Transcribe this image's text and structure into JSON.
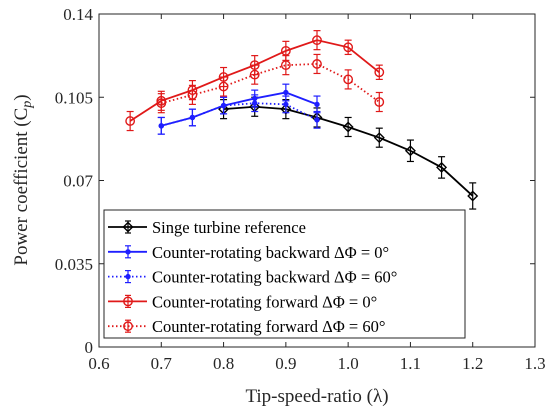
{
  "chart_data": {
    "type": "line",
    "title": "",
    "xlabel": "Tip-speed-ratio (λ)",
    "ylabel": "Power coefficient (C",
    "ylabel_sub": "p",
    "ylabel_close": ")",
    "xlim": [
      0.6,
      1.3
    ],
    "ylim": [
      0,
      0.14
    ],
    "xticks": [
      0.6,
      0.7,
      0.8,
      0.9,
      1.0,
      1.1,
      1.2,
      1.3
    ],
    "xtick_labels": [
      "0.6",
      "0.7",
      "0.8",
      "0.9",
      "1.0",
      "1.1",
      "1.2",
      "1.3"
    ],
    "yticks": [
      0,
      0.035,
      0.07,
      0.105,
      0.14
    ],
    "ytick_labels": [
      "0",
      "0.035",
      "0.07",
      "0.105",
      "0.14"
    ],
    "grid": false,
    "legend_position": "bottom-left",
    "series": [
      {
        "name": "Singe turbine reference",
        "color": "#000000",
        "line_style": "solid",
        "marker": "diamond",
        "x": [
          0.8,
          0.85,
          0.9,
          0.95,
          1.0,
          1.05,
          1.1,
          1.15,
          1.2
        ],
        "y": [
          0.1,
          0.101,
          0.1,
          0.0965,
          0.0925,
          0.088,
          0.0825,
          0.0755,
          0.0635
        ],
        "err": [
          0.004,
          0.004,
          0.004,
          0.004,
          0.004,
          0.004,
          0.0045,
          0.0045,
          0.0055
        ]
      },
      {
        "name": "Counter-rotating backward ΔΦ = 0°",
        "color": "#1f1fff",
        "line_style": "solid",
        "marker": "dot",
        "x": [
          0.7,
          0.75,
          0.8,
          0.85,
          0.9,
          0.95
        ],
        "y": [
          0.093,
          0.0965,
          0.1015,
          0.1045,
          0.107,
          0.102
        ],
        "err": [
          0.0035,
          0.0035,
          0.0035,
          0.0035,
          0.0035,
          0.0035
        ]
      },
      {
        "name": "Counter-rotating backward ΔΦ = 60°",
        "color": "#1f1fff",
        "line_style": "dotted",
        "marker": "dot",
        "x": [
          0.7,
          0.75,
          0.8,
          0.85,
          0.9,
          0.95
        ],
        "y": [
          0.093,
          0.0965,
          0.1015,
          0.1025,
          0.102,
          0.0955
        ],
        "err": [
          0.0035,
          0.0035,
          0.0035,
          0.0035,
          0.0035,
          0.0035
        ]
      },
      {
        "name": "Counter-rotating forward ΔΦ = 0°",
        "color": "#e01919",
        "line_style": "solid",
        "marker": "circle",
        "x": [
          0.65,
          0.7,
          0.75,
          0.8,
          0.85,
          0.9,
          0.95,
          1.0,
          1.05
        ],
        "y": [
          0.095,
          0.1035,
          0.108,
          0.1135,
          0.1185,
          0.1245,
          0.129,
          0.126,
          0.1155
        ],
        "err": [
          0.004,
          0.004,
          0.004,
          0.004,
          0.004,
          0.004,
          0.004,
          0.003,
          0.003
        ]
      },
      {
        "name": "Counter-rotating forward ΔΦ = 60°",
        "color": "#e01919",
        "line_style": "dotted",
        "marker": "circle",
        "x": [
          0.7,
          0.75,
          0.8,
          0.85,
          0.9,
          0.95,
          1.0,
          1.05
        ],
        "y": [
          0.1025,
          0.106,
          0.1095,
          0.1145,
          0.1185,
          0.119,
          0.1125,
          0.103
        ],
        "err": [
          0.004,
          0.004,
          0.004,
          0.004,
          0.004,
          0.004,
          0.004,
          0.004
        ]
      }
    ]
  }
}
